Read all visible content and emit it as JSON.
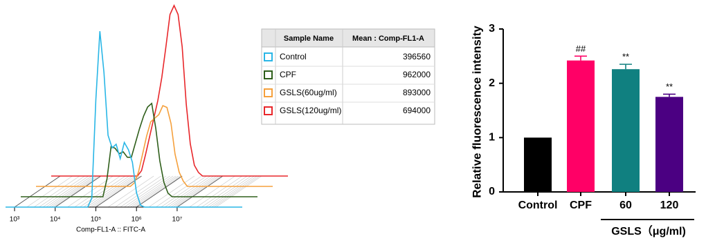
{
  "chart_data": [
    {
      "type": "flow-overlay",
      "xlabel": "Comp-FL1-A :: FITC-A",
      "log_x": true,
      "xlim": [
        600,
        400000000
      ],
      "xticks": [
        {
          "value": 1000,
          "label": "10³"
        },
        {
          "value": 10000,
          "label": "10⁴"
        },
        {
          "value": 100000,
          "label": "10⁵"
        },
        {
          "value": 1000000,
          "label": "10⁶"
        },
        {
          "value": 10000000,
          "label": "10⁷"
        }
      ],
      "ylim": [
        0,
        100
      ],
      "x": [
        600,
        63096,
        79433,
        100000,
        125893,
        158489,
        199526,
        251189,
        316228,
        398107,
        501187,
        630957,
        794328,
        1000000,
        1258925,
        1584893,
        1995262,
        2511886,
        3162278,
        400000000
      ],
      "series": [
        {
          "name": "Control",
          "color": "#29b6e6",
          "values": [
            0,
            0,
            5,
            60,
            98,
            75,
            40,
            33,
            35,
            27,
            36,
            32,
            25,
            8,
            1,
            0,
            0,
            0,
            0,
            0
          ]
        },
        {
          "name": "CPF",
          "color": "#2e5e1a",
          "values": [
            0,
            0,
            10,
            28,
            27,
            24,
            25,
            22,
            22,
            30,
            38,
            45,
            50,
            52,
            38,
            20,
            8,
            2,
            0,
            0
          ]
        },
        {
          "name": "GSLS(60ug/ml)",
          "color": "#f5a03c",
          "values": [
            0,
            0,
            0,
            0,
            0,
            2,
            8,
            18,
            28,
            36,
            38,
            40,
            45,
            44,
            35,
            18,
            8,
            3,
            0,
            0
          ]
        },
        {
          "name": "GSLS(120ug/ml)",
          "color": "#e8262a",
          "values": [
            0,
            0,
            0,
            3,
            12,
            22,
            32,
            42,
            55,
            72,
            90,
            95,
            90,
            72,
            40,
            18,
            6,
            2,
            0,
            0
          ]
        }
      ]
    },
    {
      "type": "bar",
      "ylabel": "Relative fluorescence intensity",
      "categories": [
        "Control",
        "CPF",
        "60",
        "120"
      ],
      "group_label": "GSLS（μg/ml)",
      "values": [
        1.0,
        2.42,
        2.26,
        1.75
      ],
      "errors": [
        0,
        0.08,
        0.09,
        0.05
      ],
      "annotations": [
        null,
        "##",
        "**",
        "**"
      ],
      "colors": [
        "#000000",
        "#ff0066",
        "#108080",
        "#4b0082"
      ],
      "ylim": [
        0,
        3
      ],
      "yticks": [
        0,
        1,
        2,
        3
      ]
    }
  ],
  "table": {
    "headers": [
      "Sample Name",
      "Mean : Comp-FL1-A"
    ],
    "values": [
      396560,
      962000,
      893000,
      694000
    ]
  }
}
